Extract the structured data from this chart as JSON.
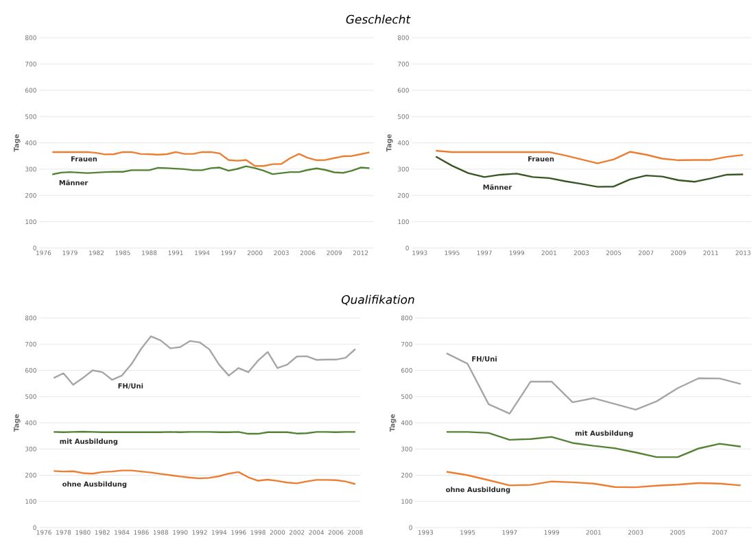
{
  "chart_data": [
    {
      "type": "line",
      "title": "Geschlecht",
      "ylabel": "Tage",
      "x": [
        1977,
        1978,
        1979,
        1980,
        1981,
        1982,
        1983,
        1984,
        1985,
        1986,
        1987,
        1988,
        1989,
        1990,
        1991,
        1992,
        1993,
        1994,
        1995,
        1996,
        1997,
        1998,
        1999,
        2000,
        2001,
        2002,
        2003,
        2004,
        2005,
        2006,
        2007,
        2008,
        2009,
        2010,
        2011,
        2012,
        2013
      ],
      "xlim": [
        1975.5,
        2013.5
      ],
      "xticks": [
        1976,
        1979,
        1982,
        1985,
        1988,
        1991,
        1994,
        1997,
        2000,
        2003,
        2006,
        2009,
        2012
      ],
      "ylim": [
        0,
        800
      ],
      "yticks": [
        0,
        100,
        200,
        300,
        400,
        500,
        600,
        700,
        800
      ],
      "grid": "y",
      "series": [
        {
          "name": "Frauen",
          "color": "#ed7d31",
          "values": [
            365,
            365,
            365,
            365,
            365,
            362,
            356,
            357,
            365,
            365,
            358,
            357,
            355,
            357,
            365,
            358,
            358,
            365,
            365,
            360,
            335,
            332,
            335,
            312,
            312,
            319,
            320,
            342,
            358,
            343,
            334,
            335,
            342,
            349,
            350,
            357,
            364
          ]
        },
        {
          "name": "Männer",
          "color": "#548235",
          "values": [
            280,
            287,
            289,
            287,
            285,
            287,
            289,
            290,
            290,
            296,
            296,
            296,
            305,
            304,
            302,
            300,
            296,
            296,
            304,
            306,
            294,
            301,
            311,
            304,
            294,
            281,
            285,
            289,
            289,
            297,
            303,
            297,
            288,
            286,
            294,
            306,
            304
          ]
        }
      ]
    },
    {
      "type": "line",
      "ylabel": "Tage",
      "x": [
        1994,
        1995,
        1996,
        1997,
        1998,
        1999,
        2000,
        2001,
        2002,
        2003,
        2004,
        2005,
        2006,
        2007,
        2008,
        2009,
        2010,
        2011,
        2012,
        2013
      ],
      "xlim": [
        1992.5,
        2013.5
      ],
      "xticks": [
        1993,
        1995,
        1997,
        1999,
        2001,
        2003,
        2005,
        2007,
        2009,
        2011,
        2013
      ],
      "ylim": [
        0,
        800
      ],
      "yticks": [
        0,
        100,
        200,
        300,
        400,
        500,
        600,
        700,
        800
      ],
      "grid": "y",
      "series": [
        {
          "name": "Frauen",
          "color": "#ed7d31",
          "values": [
            370,
            365,
            365,
            365,
            365,
            365,
            365,
            365,
            352,
            337,
            322,
            337,
            366,
            355,
            340,
            334,
            335,
            335,
            347,
            354
          ]
        },
        {
          "name": "Männer",
          "color": "#375623",
          "values": [
            348,
            313,
            285,
            270,
            279,
            283,
            270,
            266,
            254,
            244,
            233,
            234,
            261,
            276,
            272,
            258,
            252,
            265,
            279,
            280
          ]
        }
      ]
    },
    {
      "type": "line",
      "title": "Qualifikation",
      "ylabel": "Tage",
      "x": [
        1977,
        1978,
        1979,
        1980,
        1981,
        1982,
        1983,
        1984,
        1985,
        1986,
        1987,
        1988,
        1989,
        1990,
        1991,
        1992,
        1993,
        1994,
        1995,
        1996,
        1997,
        1998,
        1999,
        2000,
        2001,
        2002,
        2003,
        2004,
        2005,
        2006,
        2007,
        2008
      ],
      "xlim": [
        1975.5,
        2008.5
      ],
      "xticks": [
        1976,
        1978,
        1980,
        1982,
        1984,
        1986,
        1988,
        1990,
        1992,
        1994,
        1996,
        1998,
        2000,
        2002,
        2004,
        2006,
        2008
      ],
      "ylim": [
        0,
        800
      ],
      "yticks": [
        0,
        100,
        200,
        300,
        400,
        500,
        600,
        700,
        800
      ],
      "grid": "y",
      "series": [
        {
          "name": "FH/Uni",
          "color": "#a5a5a5",
          "values": [
            571,
            589,
            545,
            571,
            600,
            593,
            564,
            580,
            624,
            683,
            730,
            714,
            684,
            689,
            712,
            707,
            680,
            622,
            580,
            609,
            593,
            637,
            670,
            609,
            622,
            653,
            654,
            640,
            641,
            641,
            648,
            681
          ]
        },
        {
          "name": "mit Ausbildung",
          "color": "#548235",
          "values": [
            365,
            364,
            365,
            366,
            365,
            364,
            364,
            364,
            364,
            364,
            364,
            364,
            365,
            364,
            365,
            365,
            365,
            364,
            364,
            365,
            358,
            358,
            364,
            364,
            364,
            359,
            360,
            365,
            365,
            364,
            365,
            365
          ]
        },
        {
          "name": "ohne Ausbildung",
          "color": "#ed7d31",
          "values": [
            216,
            214,
            215,
            208,
            206,
            212,
            214,
            218,
            218,
            214,
            210,
            205,
            200,
            195,
            191,
            188,
            190,
            196,
            206,
            212,
            192,
            179,
            183,
            178,
            172,
            169,
            176,
            182,
            182,
            181,
            176,
            166
          ]
        }
      ]
    },
    {
      "type": "line",
      "ylabel": "Tage",
      "x": [
        1994,
        1995,
        1996,
        1997,
        1998,
        1999,
        2000,
        2001,
        2002,
        2003,
        2004,
        2005,
        2006,
        2007,
        2008
      ],
      "xlim": [
        1992.5,
        2008.5
      ],
      "xticks": [
        1993,
        1995,
        1997,
        1999,
        2001,
        2003,
        2005,
        2007
      ],
      "ylim": [
        0,
        800
      ],
      "yticks": [
        0,
        100,
        200,
        300,
        400,
        500,
        600,
        700,
        800
      ],
      "grid": "y",
      "series": [
        {
          "name": "FH/Uni",
          "color": "#a5a5a5",
          "values": [
            665,
            625,
            471,
            435,
            557,
            557,
            478,
            494,
            472,
            450,
            482,
            532,
            570,
            569,
            548
          ]
        },
        {
          "name": "mit Ausbildung",
          "color": "#548235",
          "values": [
            365,
            365,
            361,
            335,
            338,
            346,
            323,
            312,
            303,
            287,
            269,
            269,
            302,
            320,
            309
          ]
        },
        {
          "name": "ohne Ausbildung",
          "color": "#ed7d31",
          "values": [
            213,
            200,
            181,
            161,
            163,
            176,
            173,
            168,
            155,
            154,
            160,
            164,
            170,
            168,
            161
          ]
        }
      ]
    }
  ]
}
